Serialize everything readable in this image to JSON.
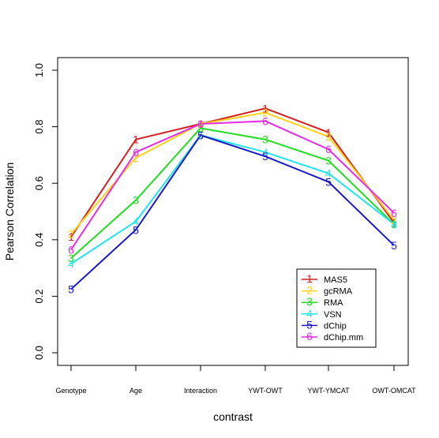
{
  "chart_data": {
    "type": "line",
    "categories": [
      "Genotype",
      "Age",
      "Interaction",
      "YWT-OWT",
      "YWT-YMCAT",
      "OWT-OMCAT"
    ],
    "xlabel": "contrast",
    "ylabel": "Pearson Correlation",
    "ylim": [
      0.0,
      1.0
    ],
    "yticks": [
      "0.0",
      "0.2",
      "0.4",
      "0.6",
      "0.8",
      "1.0"
    ],
    "grid": false,
    "legend_position": "bottom-right",
    "series": [
      {
        "name": "MAS5",
        "marker": "1",
        "color": "#d42020",
        "values": [
          0.41,
          0.755,
          0.81,
          0.865,
          0.78,
          0.46
        ]
      },
      {
        "name": "gcRMA",
        "marker": "2",
        "color": "#ffd21a",
        "values": [
          0.42,
          0.69,
          0.81,
          0.85,
          0.765,
          0.47
        ]
      },
      {
        "name": "RMA",
        "marker": "3",
        "color": "#22dd22",
        "values": [
          0.335,
          0.54,
          0.795,
          0.755,
          0.68,
          0.455
        ]
      },
      {
        "name": "VSN",
        "marker": "4",
        "color": "#22e5ee",
        "values": [
          0.315,
          0.465,
          0.77,
          0.71,
          0.635,
          0.455
        ]
      },
      {
        "name": "dChip",
        "marker": "5",
        "color": "#1a1ac8",
        "values": [
          0.225,
          0.435,
          0.77,
          0.695,
          0.605,
          0.38
        ]
      },
      {
        "name": "dChip.mm",
        "marker": "6",
        "color": "#e62ee6",
        "values": [
          0.365,
          0.71,
          0.81,
          0.82,
          0.72,
          0.495
        ]
      }
    ]
  }
}
